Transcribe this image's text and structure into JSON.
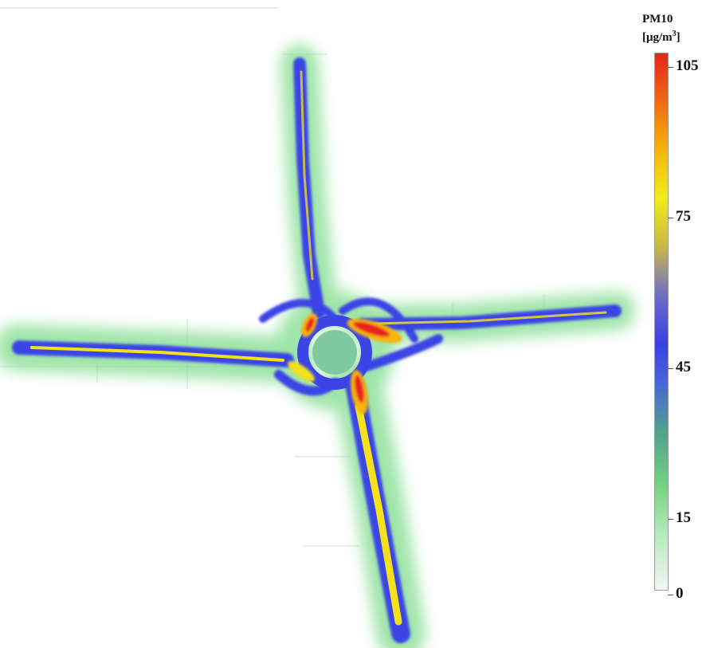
{
  "colorbar": {
    "title": "PM10",
    "unit_prefix": "[μg/m",
    "unit_exp": "3",
    "unit_suffix": "]",
    "ticks": [
      {
        "label": "105",
        "value": 105
      },
      {
        "label": "75",
        "value": 75
      },
      {
        "label": "45",
        "value": 45
      },
      {
        "label": "15",
        "value": 15
      },
      {
        "label": "0",
        "value": 0
      }
    ],
    "range": [
      0,
      105
    ],
    "colors": {
      "high": "#e8241f",
      "upper_mid": "#f2ec1a",
      "mid": "#3a3fe4",
      "low": "#72d07c",
      "zero": "#f4f4f4"
    }
  },
  "map": {
    "features": [
      "north-road",
      "west-road",
      "east-road",
      "south-road",
      "roundabout"
    ],
    "halo_color": "#8ee09a",
    "road_color": "#3b44e6",
    "hotspot_color": "#e8241f",
    "lane_color": "#f2e11c"
  }
}
